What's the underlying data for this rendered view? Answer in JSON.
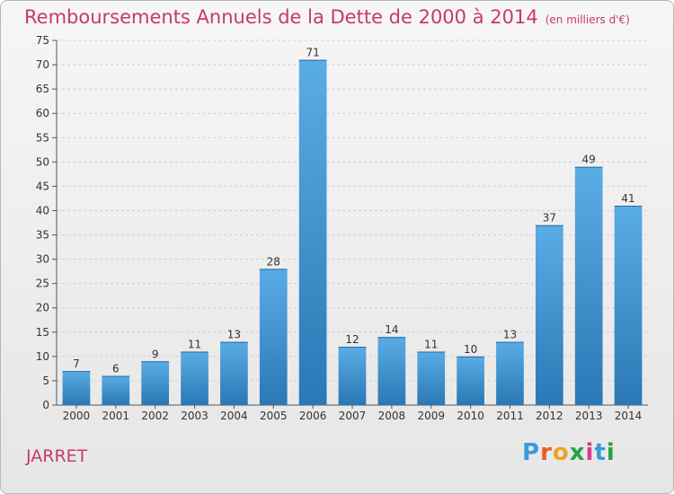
{
  "title": "Remboursements Annuels de la Dette de 2000 à 2014",
  "unit": "(en milliers d'€)",
  "commune": "JARRET",
  "brand": {
    "text": "Proxiti",
    "letter_colors": [
      "#3a9bd9",
      "#e85c2a",
      "#e8a628",
      "#2aa04a",
      "#d93a8a",
      "#3a9bd9",
      "#2aa04a"
    ]
  },
  "colors": {
    "title": "#c8396a",
    "bar_top": "#5aace6",
    "bar_bottom": "#2a78b5",
    "grid": "#cfcfcf"
  },
  "chart_data": {
    "type": "bar",
    "title": "Remboursements Annuels de la Dette de 2000 à 2014",
    "subtitle": "(en milliers d'€)",
    "categories": [
      "2000",
      "2001",
      "2002",
      "2003",
      "2004",
      "2005",
      "2006",
      "2007",
      "2008",
      "2009",
      "2010",
      "2011",
      "2012",
      "2013",
      "2014"
    ],
    "values": [
      7,
      6,
      9,
      11,
      13,
      28,
      71,
      12,
      14,
      11,
      10,
      13,
      37,
      49,
      41
    ],
    "ylim": [
      0,
      75
    ],
    "yticks": [
      0,
      5,
      10,
      15,
      20,
      25,
      30,
      35,
      40,
      45,
      50,
      55,
      60,
      65,
      70,
      75
    ],
    "grid": true,
    "data_labels": true
  }
}
